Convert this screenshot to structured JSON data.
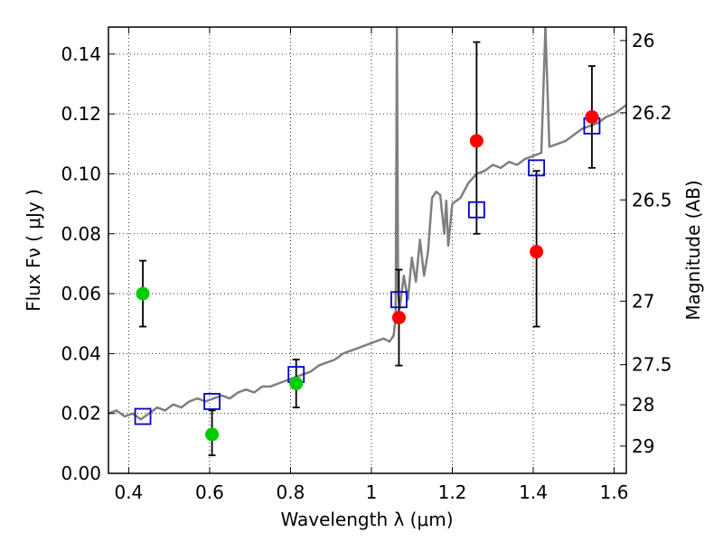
{
  "chart_data": {
    "type": "scatter",
    "xlabel": "Wavelength  λ (μm)",
    "ylabel": "Flux  Fν  ( μJy )",
    "ylabel_right": "Magnitude (AB)",
    "xlim": [
      0.35,
      1.63
    ],
    "ylim": [
      0.0,
      0.149
    ],
    "grid": true,
    "x_ticks": [
      {
        "value": 0.4,
        "label": "0.4"
      },
      {
        "value": 0.6,
        "label": "0.6"
      },
      {
        "value": 0.8,
        "label": "0.8"
      },
      {
        "value": 1.0,
        "label": "1"
      },
      {
        "value": 1.2,
        "label": "1.2"
      },
      {
        "value": 1.4,
        "label": "1.4"
      },
      {
        "value": 1.6,
        "label": "1.6"
      }
    ],
    "y_ticks": [
      {
        "value": 0.0,
        "label": "0.00"
      },
      {
        "value": 0.02,
        "label": "0.02"
      },
      {
        "value": 0.04,
        "label": "0.04"
      },
      {
        "value": 0.06,
        "label": "0.06"
      },
      {
        "value": 0.08,
        "label": "0.08"
      },
      {
        "value": 0.1,
        "label": "0.10"
      },
      {
        "value": 0.12,
        "label": "0.12"
      },
      {
        "value": 0.14,
        "label": "0.14"
      }
    ],
    "right_ticks": [
      {
        "flux": 0.1445,
        "label": "26"
      },
      {
        "flux": 0.1204,
        "label": "26.2"
      },
      {
        "flux": 0.0913,
        "label": "26.5"
      },
      {
        "flux": 0.0575,
        "label": "27"
      },
      {
        "flux": 0.0363,
        "label": "27.5"
      },
      {
        "flux": 0.0229,
        "label": "28"
      },
      {
        "flux": 0.0091,
        "label": "29"
      }
    ],
    "series": [
      {
        "kind": "line",
        "color": "#7f7f7f",
        "points": [
          [
            0.35,
            0.02
          ],
          [
            0.37,
            0.021
          ],
          [
            0.39,
            0.019
          ],
          [
            0.41,
            0.02
          ],
          [
            0.43,
            0.018
          ],
          [
            0.45,
            0.02
          ],
          [
            0.47,
            0.022
          ],
          [
            0.49,
            0.021
          ],
          [
            0.51,
            0.023
          ],
          [
            0.53,
            0.022
          ],
          [
            0.55,
            0.024
          ],
          [
            0.57,
            0.025
          ],
          [
            0.59,
            0.024
          ],
          [
            0.61,
            0.025
          ],
          [
            0.63,
            0.026
          ],
          [
            0.65,
            0.025
          ],
          [
            0.67,
            0.027
          ],
          [
            0.69,
            0.028
          ],
          [
            0.71,
            0.027
          ],
          [
            0.73,
            0.029
          ],
          [
            0.75,
            0.029
          ],
          [
            0.77,
            0.03
          ],
          [
            0.79,
            0.031
          ],
          [
            0.81,
            0.032
          ],
          [
            0.83,
            0.033
          ],
          [
            0.85,
            0.034
          ],
          [
            0.87,
            0.036
          ],
          [
            0.89,
            0.037
          ],
          [
            0.91,
            0.038
          ],
          [
            0.93,
            0.04
          ],
          [
            0.95,
            0.041
          ],
          [
            0.97,
            0.042
          ],
          [
            0.99,
            0.043
          ],
          [
            1.01,
            0.044
          ],
          [
            1.03,
            0.045
          ],
          [
            1.045,
            0.044
          ],
          [
            1.055,
            0.046
          ],
          [
            1.06,
            0.052
          ],
          [
            1.063,
            0.149
          ],
          [
            1.066,
            0.06
          ],
          [
            1.07,
            0.055
          ],
          [
            1.08,
            0.066
          ],
          [
            1.09,
            0.058
          ],
          [
            1.1,
            0.072
          ],
          [
            1.11,
            0.064
          ],
          [
            1.12,
            0.078
          ],
          [
            1.13,
            0.066
          ],
          [
            1.14,
            0.074
          ],
          [
            1.15,
            0.092
          ],
          [
            1.16,
            0.094
          ],
          [
            1.17,
            0.093
          ],
          [
            1.18,
            0.08
          ],
          [
            1.185,
            0.091
          ],
          [
            1.19,
            0.076
          ],
          [
            1.2,
            0.09
          ],
          [
            1.22,
            0.092
          ],
          [
            1.24,
            0.097
          ],
          [
            1.26,
            0.1
          ],
          [
            1.28,
            0.101
          ],
          [
            1.3,
            0.103
          ],
          [
            1.32,
            0.102
          ],
          [
            1.34,
            0.104
          ],
          [
            1.36,
            0.103
          ],
          [
            1.38,
            0.105
          ],
          [
            1.4,
            0.106
          ],
          [
            1.42,
            0.107
          ],
          [
            1.43,
            0.149
          ],
          [
            1.44,
            0.109
          ],
          [
            1.46,
            0.11
          ],
          [
            1.48,
            0.111
          ],
          [
            1.5,
            0.113
          ],
          [
            1.52,
            0.115
          ],
          [
            1.54,
            0.116
          ],
          [
            1.56,
            0.117
          ],
          [
            1.58,
            0.119
          ],
          [
            1.6,
            0.12
          ],
          [
            1.62,
            0.122
          ],
          [
            1.63,
            0.123
          ]
        ]
      },
      {
        "kind": "points",
        "color": "#00cc00",
        "points": [
          {
            "x": 0.435,
            "y": 0.06,
            "ylo": 0.049,
            "yhi": 0.071
          },
          {
            "x": 0.606,
            "y": 0.013,
            "ylo": 0.006,
            "yhi": 0.021
          },
          {
            "x": 0.814,
            "y": 0.03,
            "ylo": 0.022,
            "yhi": 0.038
          }
        ]
      },
      {
        "kind": "points",
        "color": "#ff0000",
        "points": [
          {
            "x": 1.068,
            "y": 0.052,
            "ylo": 0.036,
            "yhi": 0.068
          },
          {
            "x": 1.26,
            "y": 0.111,
            "ylo": 0.08,
            "yhi": 0.144
          },
          {
            "x": 1.408,
            "y": 0.074,
            "ylo": 0.049,
            "yhi": 0.101
          },
          {
            "x": 1.545,
            "y": 0.119,
            "ylo": 0.102,
            "yhi": 0.136
          }
        ]
      },
      {
        "kind": "squares",
        "color": "#0000cc",
        "points": [
          {
            "x": 0.435,
            "y": 0.019
          },
          {
            "x": 0.606,
            "y": 0.024
          },
          {
            "x": 0.814,
            "y": 0.033
          },
          {
            "x": 1.068,
            "y": 0.058
          },
          {
            "x": 1.26,
            "y": 0.088
          },
          {
            "x": 1.408,
            "y": 0.102
          },
          {
            "x": 1.545,
            "y": 0.116
          }
        ]
      }
    ]
  }
}
